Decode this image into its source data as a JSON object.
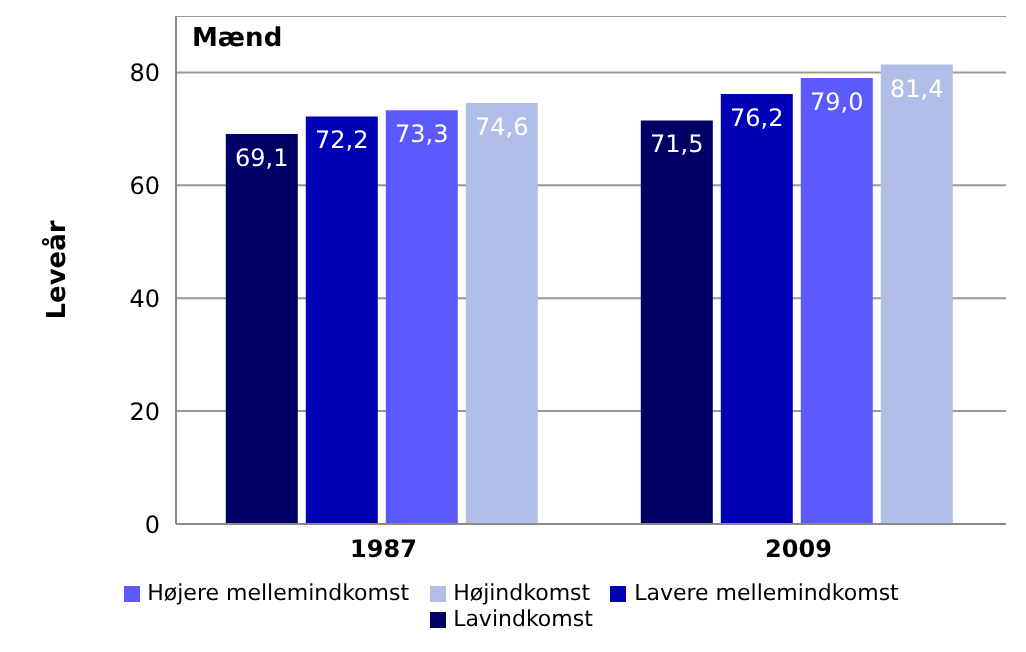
{
  "chart_data": {
    "type": "bar",
    "title": "Mænd",
    "ylabel": "Leveår",
    "categories": [
      "1987",
      "2009"
    ],
    "series": [
      {
        "name": "Lavindkomst",
        "color": "#000066",
        "values": [
          69.1,
          71.5
        ]
      },
      {
        "name": "Lavere mellemindkomst",
        "color": "#0000b4",
        "values": [
          72.2,
          76.2
        ]
      },
      {
        "name": "Højere mellemindkomst",
        "color": "#5a5aff",
        "values": [
          73.3,
          79.0
        ]
      },
      {
        "name": "Højindkomst",
        "color": "#b0bee8",
        "values": [
          74.6,
          81.4
        ]
      }
    ],
    "value_labels": [
      [
        "69,1",
        "71,5"
      ],
      [
        "72,2",
        "76,2"
      ],
      [
        "73,3",
        "79,0"
      ],
      [
        "74,6",
        "81,4"
      ]
    ],
    "ylim": [
      0,
      90
    ],
    "yticks": [
      0,
      20,
      40,
      60,
      80
    ],
    "grid": "y",
    "legend": "bottom"
  }
}
